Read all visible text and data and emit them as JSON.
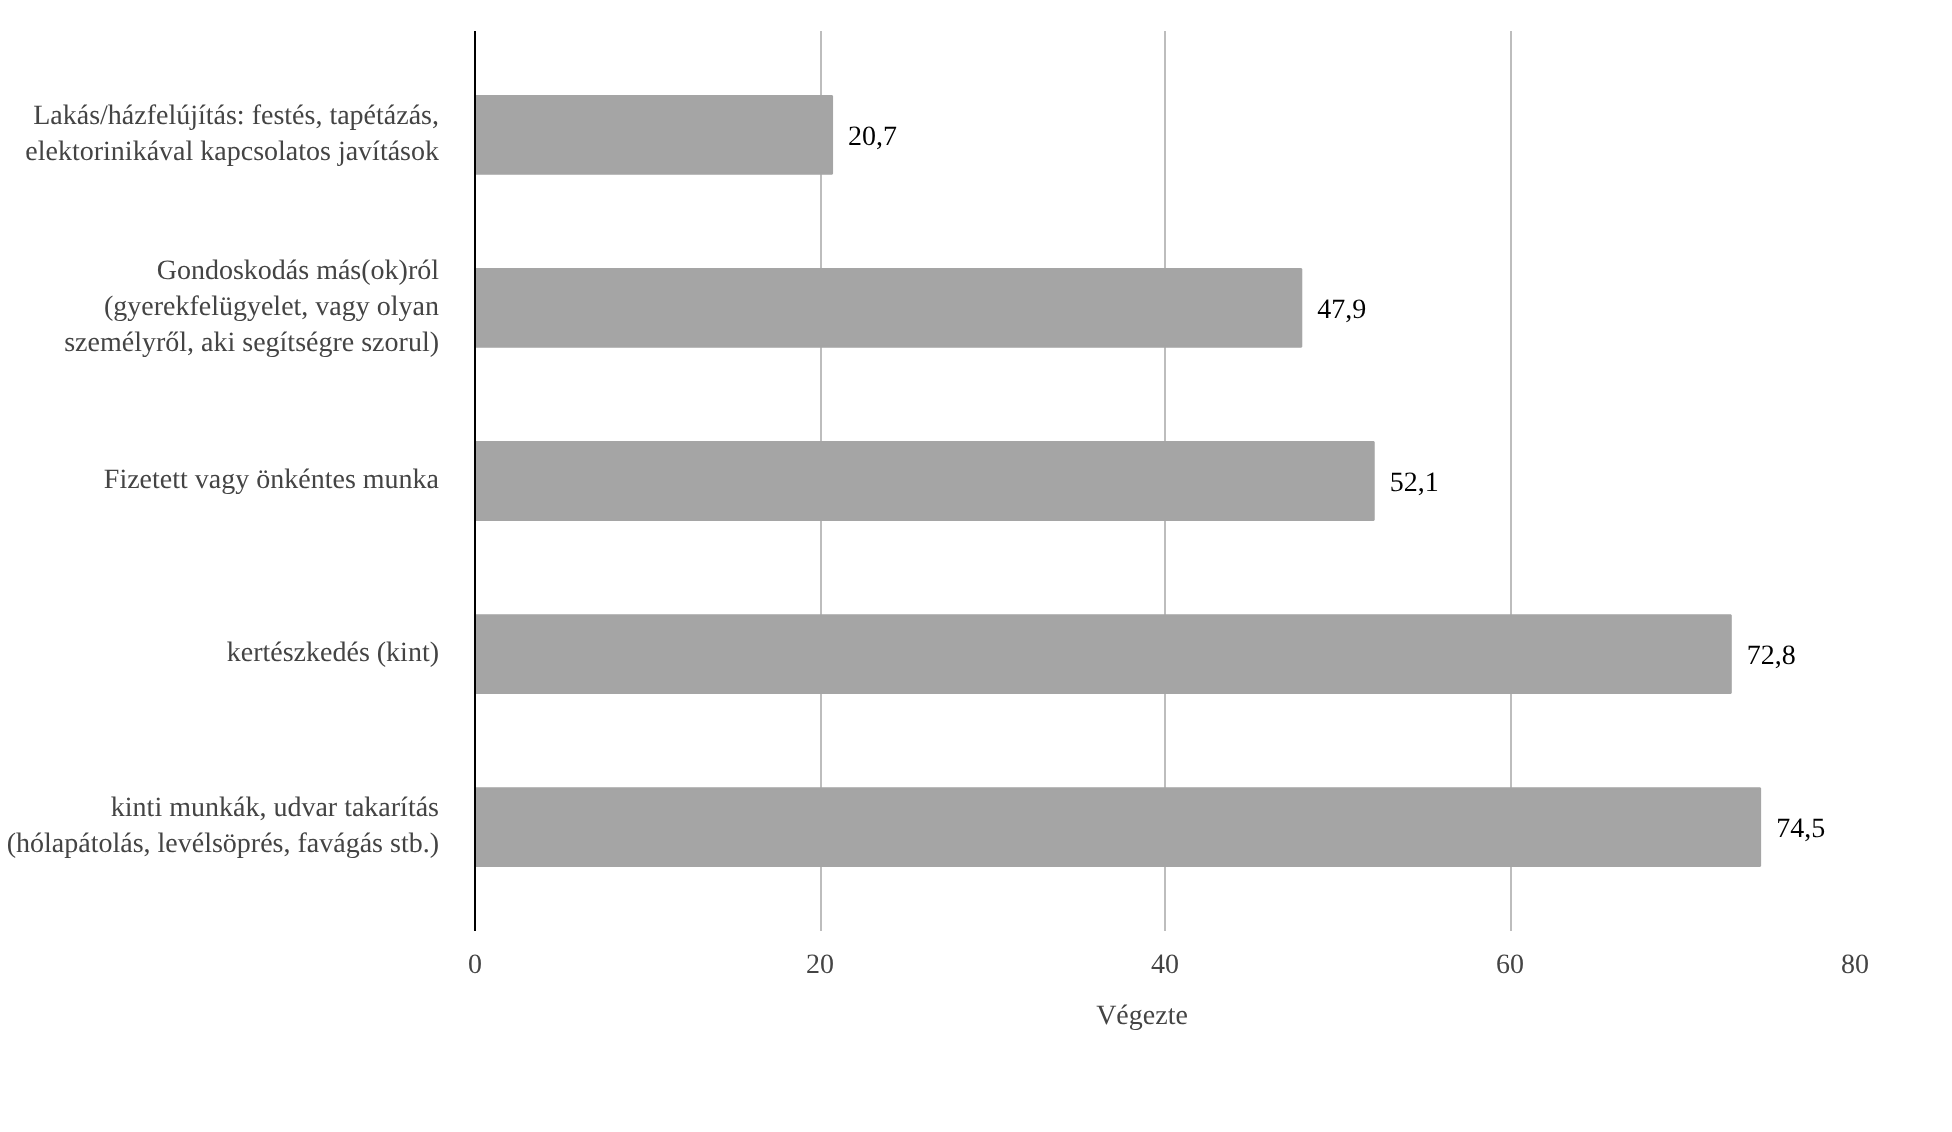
{
  "chart_data": {
    "type": "bar",
    "orientation": "horizontal",
    "categories": [
      "Lakás/házfelújítás: festés, tapétázás,\nelektorinikával kapcsolatos javítások",
      "Gondoskodás más(ok)ról\n(gyerekfelügyelet, vagy olyan\nszemélyről, aki segítségre szorul)",
      "Fizetett vagy önkéntes munka",
      "kertészkedés (kint)",
      "kinti munkák, udvar takarítás\n(hólapátolás, levélsöprés, favágás stb.)"
    ],
    "series": [
      {
        "name": "Végezte",
        "color": "#a5a5a5",
        "values": [
          20.7,
          47.9,
          52.1,
          72.8,
          74.5
        ],
        "value_labels": [
          "20,7",
          "47,9",
          "52,1",
          "72,8",
          "74,5"
        ]
      }
    ],
    "xlim": [
      0,
      80
    ],
    "xticks": [
      0,
      20,
      40,
      60,
      80
    ],
    "grid": "x",
    "legend": "bottom"
  }
}
